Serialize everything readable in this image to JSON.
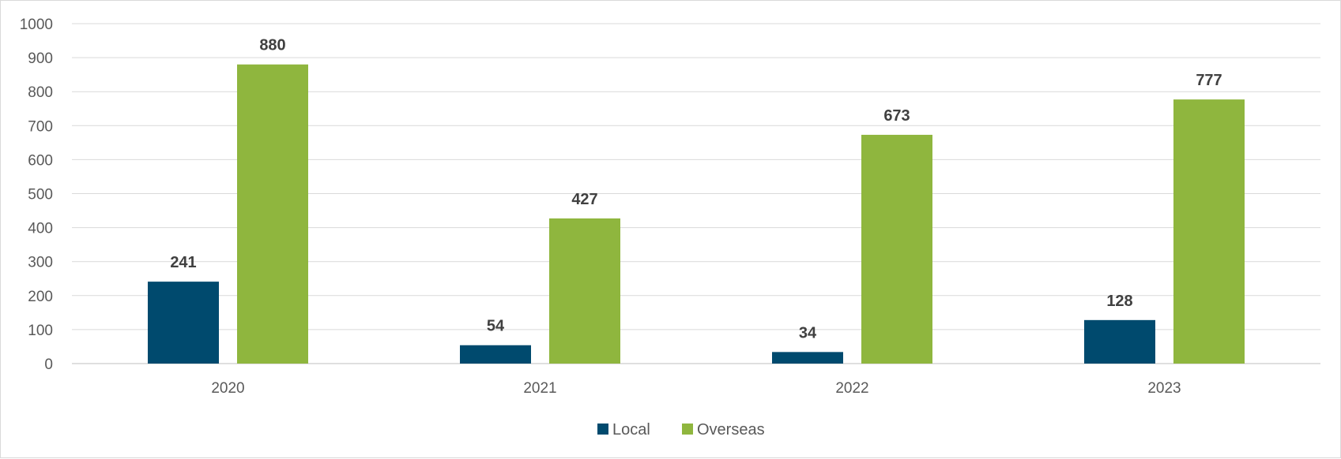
{
  "chart_data": {
    "type": "bar",
    "title": "",
    "xlabel": "",
    "ylabel": "",
    "categories": [
      "2020",
      "2021",
      "2022",
      "2023"
    ],
    "series": [
      {
        "name": "Local",
        "values": [
          241,
          54,
          34,
          128
        ],
        "color": "#004a6e"
      },
      {
        "name": "Overseas",
        "values": [
          880,
          427,
          673,
          777
        ],
        "color": "#8fb63e"
      }
    ],
    "ylim": [
      0,
      1000
    ],
    "yticks": [
      0,
      100,
      200,
      300,
      400,
      500,
      600,
      700,
      800,
      900,
      1000
    ],
    "grid": true,
    "legend": "bottom",
    "data_labels": true
  }
}
